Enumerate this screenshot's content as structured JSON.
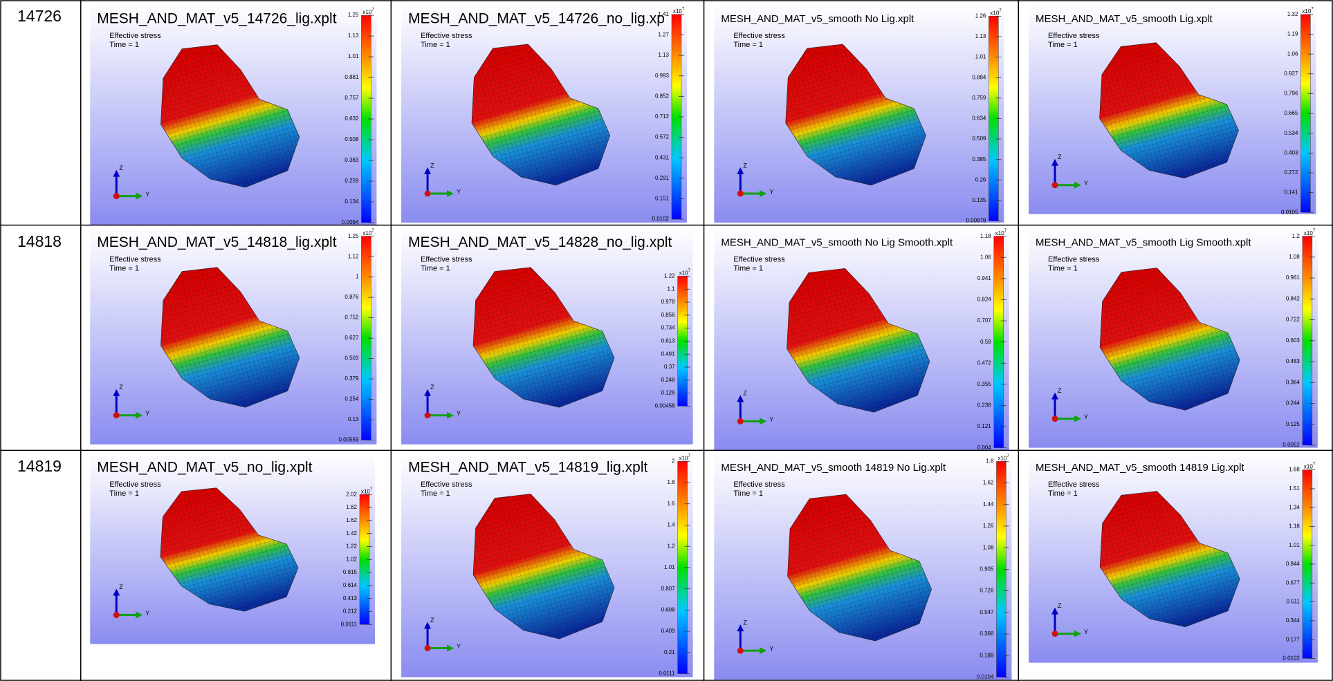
{
  "table": {
    "rows": [
      {
        "label": "14726",
        "panels": [
          {
            "title": "MESH_AND_MAT_v5_14726_lig.xplt",
            "result": "Effective stress",
            "time": "Time = 1",
            "scale_base": "x10",
            "scale_power": "7",
            "axis_labels": [
              "Z",
              "Y"
            ],
            "colorbar_labels": [
              "1.25",
              "1.13",
              "1.01",
              "0.881",
              "0.757",
              "0.632",
              "0.508",
              "0.383",
              "0.259",
              "0.134",
              "0.0094"
            ]
          },
          {
            "title": "MESH_AND_MAT_v5_14726_no_lig.xp",
            "result": "Effective stress",
            "time": "Time = 1",
            "scale_base": "x10",
            "scale_power": "7",
            "axis_labels": [
              "Z",
              "Y"
            ],
            "colorbar_labels": [
              "1.41",
              "1.27",
              "1.13",
              "0.993",
              "0.852",
              "0.712",
              "0.572",
              "0.431",
              "0.291",
              "0.151",
              "0.0102"
            ]
          },
          {
            "title": "MESH_AND_MAT_v5_smooth No Lig.xplt",
            "result": "Effective stress",
            "time": "Time = 1",
            "scale_base": "x10",
            "scale_power": "7",
            "axis_labels": [
              "Z",
              "Y"
            ],
            "colorbar_labels": [
              "1.26",
              "1.13",
              "1.01",
              "0.884",
              "0.759",
              "0.634",
              "0.509",
              "0.385",
              "0.26",
              "0.135",
              "0.00978"
            ]
          },
          {
            "title": "MESH_AND_MAT_v5_smooth Lig.xplt",
            "result": "Effective stress",
            "time": "Time = 1",
            "scale_base": "x10",
            "scale_power": "7",
            "axis_labels": [
              "Z",
              "Y"
            ],
            "colorbar_labels": [
              "1.32",
              "1.19",
              "1.06",
              "0.927",
              "0.796",
              "0.665",
              "0.534",
              "0.403",
              "0.272",
              "0.141",
              "0.0105"
            ]
          }
        ]
      },
      {
        "label": "14818",
        "panels": [
          {
            "title": "MESH_AND_MAT_v5_14818_lig.xplt",
            "result": "Effective stress",
            "time": "Time = 1",
            "scale_base": "x10",
            "scale_power": "7",
            "axis_labels": [
              "Z",
              "Y"
            ],
            "colorbar_labels": [
              "1.25",
              "1.12",
              "1",
              "0.876",
              "0.752",
              "0.627",
              "0.503",
              "0.379",
              "0.254",
              "0.13",
              "0.00559"
            ]
          },
          {
            "title": "MESH_AND_MAT_v5_14828_no_lig.xplt",
            "result": "Effective stress",
            "time": "Time = 1",
            "scale_base": "x10",
            "scale_power": "7",
            "axis_labels": [
              "Z",
              "Y"
            ],
            "colorbar_labels": [
              "1.22",
              "1.1",
              "0.978",
              "0.856",
              "0.734",
              "0.613",
              "0.491",
              "0.37",
              "0.248",
              "0.126",
              "0.00458"
            ]
          },
          {
            "title": "MESH_AND_MAT_v5_smooth No Lig Smooth.xplt",
            "result": "Effective stress",
            "time": "Time = 1",
            "scale_base": "x10",
            "scale_power": "7",
            "axis_labels": [
              "Z",
              "Y"
            ],
            "colorbar_labels": [
              "1.18",
              "1.06",
              "0.941",
              "0.824",
              "0.707",
              "0.59",
              "0.472",
              "0.355",
              "0.238",
              "0.121",
              "0.004"
            ]
          },
          {
            "title": "MESH_AND_MAT_v5_smooth Lig Smooth.xplt",
            "result": "Effective stress",
            "time": "Time = 1",
            "scale_base": "x10",
            "scale_power": "7",
            "axis_labels": [
              "Z",
              "Y"
            ],
            "colorbar_labels": [
              "1.2",
              "1.08",
              "0.961",
              "0.842",
              "0.722",
              "0.603",
              "0.483",
              "0.364",
              "0.244",
              "0.125",
              "0.0052"
            ]
          }
        ]
      },
      {
        "label": "14819",
        "panels": [
          {
            "title": "MESH_AND_MAT_v5_no_lig.xplt",
            "result": "Effective stress",
            "time": "Time = 1",
            "scale_base": "x10",
            "scale_power": "7",
            "axis_labels": [
              "Z",
              "Y"
            ],
            "colorbar_labels": [
              "2.02",
              "1.82",
              "1.62",
              "1.42",
              "1.22",
              "1.02",
              "0.815",
              "0.614",
              "0.413",
              "0.212",
              "0.0111"
            ]
          },
          {
            "title": "MESH_AND_MAT_v5_14819_lig.xplt",
            "result": "Effective stress",
            "time": "Time = 1",
            "scale_base": "x10",
            "scale_power": "7",
            "axis_labels": [
              "Z",
              "Y"
            ],
            "colorbar_labels": [
              "2",
              "1.8",
              "1.6",
              "1.4",
              "1.2",
              "1.01",
              "0.807",
              "0.608",
              "0.409",
              "0.21",
              "0.0111"
            ]
          },
          {
            "title": "MESH_AND_MAT_v5_smooth 14819 No Lig.xplt",
            "result": "Effective stress",
            "time": "Time = 1",
            "scale_base": "x10",
            "scale_power": "7",
            "axis_labels": [
              "Z",
              "Y"
            ],
            "colorbar_labels": [
              "1.8",
              "1.62",
              "1.44",
              "1.26",
              "1.08",
              "0.905",
              "0.726",
              "0.547",
              "0.368",
              "0.189",
              "0.0104"
            ]
          },
          {
            "title": "MESH_AND_MAT_v5_smooth 14819 Lig.xplt",
            "result": "Effective stress",
            "time": "Time = 1",
            "scale_base": "x10",
            "scale_power": "7",
            "axis_labels": [
              "Z",
              "Y"
            ],
            "colorbar_labels": [
              "1.68",
              "1.51",
              "1.34",
              "1.18",
              "1.01",
              "0.844",
              "0.677",
              "0.511",
              "0.344",
              "0.177",
              "0.0102"
            ]
          }
        ]
      }
    ]
  }
}
